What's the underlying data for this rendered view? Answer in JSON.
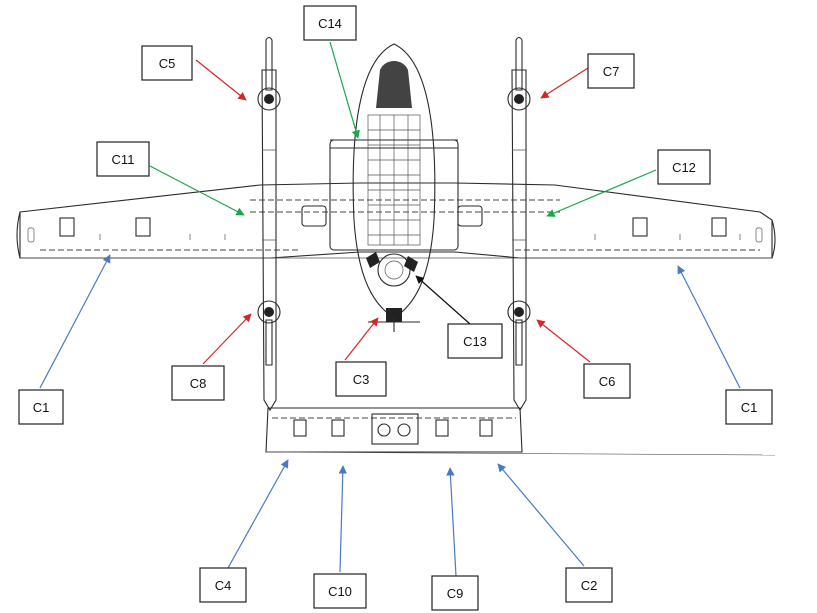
{
  "colors": {
    "red_arrow": "#d62728",
    "green_arrow": "#1aa64a",
    "blue_arrow": "#4a78c4",
    "black_arrow": "#111111",
    "ink": "#2a2a2a"
  },
  "labels": [
    {
      "id": "C14",
      "text": "C14",
      "arrow_color": "green"
    },
    {
      "id": "C5",
      "text": "C5",
      "arrow_color": "red"
    },
    {
      "id": "C7",
      "text": "C7",
      "arrow_color": "red"
    },
    {
      "id": "C11",
      "text": "C11",
      "arrow_color": "green"
    },
    {
      "id": "C12",
      "text": "C12",
      "arrow_color": "green"
    },
    {
      "id": "C13",
      "text": "C13",
      "arrow_color": "black"
    },
    {
      "id": "C8",
      "text": "C8",
      "arrow_color": "red"
    },
    {
      "id": "C3",
      "text": "C3",
      "arrow_color": "red"
    },
    {
      "id": "C6",
      "text": "C6",
      "arrow_color": "red"
    },
    {
      "id": "C1L",
      "text": "C1",
      "arrow_color": "blue"
    },
    {
      "id": "C1R",
      "text": "C1",
      "arrow_color": "blue"
    },
    {
      "id": "C4",
      "text": "C4",
      "arrow_color": "blue"
    },
    {
      "id": "C10",
      "text": "C10",
      "arrow_color": "blue"
    },
    {
      "id": "C9",
      "text": "C9",
      "arrow_color": "blue"
    },
    {
      "id": "C2",
      "text": "C2",
      "arrow_color": "blue"
    }
  ]
}
